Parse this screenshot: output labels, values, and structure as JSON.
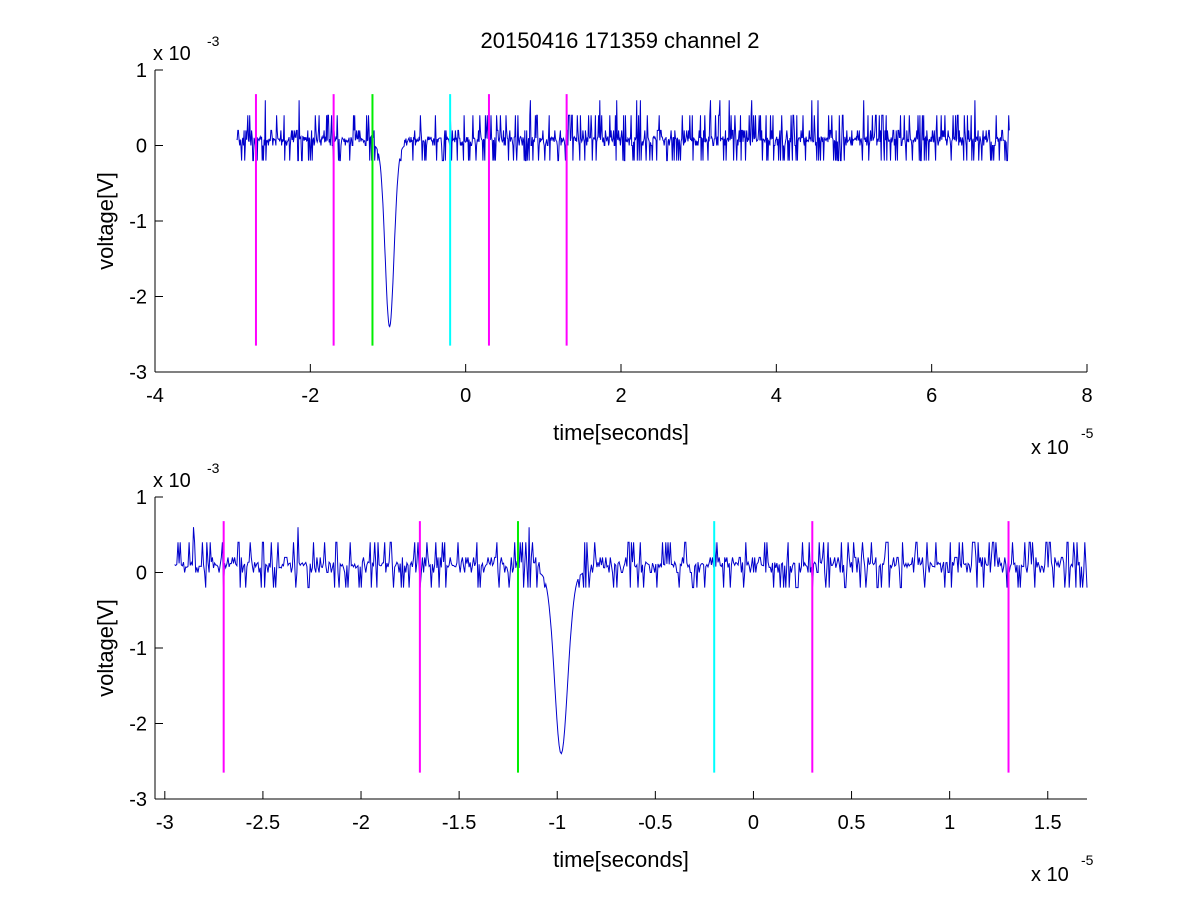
{
  "figure_title": "20150416 171359 channel 2",
  "colors": {
    "signal": "#0000cc",
    "marker_magenta": "#ff00ff",
    "marker_green": "#00ee00",
    "marker_cyan": "#00ffff",
    "axis": "#000000"
  },
  "chart_data": [
    {
      "type": "line",
      "title": "20150416 171359 channel 2",
      "xlabel": "time[seconds]",
      "ylabel": "voltage[V]",
      "x_multiplier": "x 10",
      "x_exponent": "-5",
      "y_multiplier": "x 10",
      "y_exponent": "-3",
      "xlim": [
        -4,
        8
      ],
      "ylim": [
        -3,
        1
      ],
      "x_unit_scale": 1e-05,
      "y_unit_scale": 0.001,
      "xticks": [
        -4,
        -2,
        0,
        2,
        4,
        6,
        8
      ],
      "xtick_labels": [
        "-4",
        "-2",
        "0",
        "2",
        "4",
        "6",
        "8"
      ],
      "yticks": [
        -3,
        -2,
        -1,
        0,
        1
      ],
      "ytick_labels": [
        "-3",
        "-2",
        "-1",
        "0",
        "1"
      ],
      "grid": false,
      "series": [
        {
          "color": "#0000cc",
          "x_start": -2.95,
          "x_end": 7.0,
          "baseline": 0.08,
          "noise_amplitude": 0.2,
          "spike": {
            "x": -0.98,
            "min": -2.4,
            "width": 0.12
          },
          "note_values": "approx trace: noisy around ~0.1e-3 V with a single negative spike near -1e-5 s"
        }
      ],
      "markers": [
        {
          "x": -2.7,
          "y_top": 0.68,
          "y_bottom": -2.65,
          "color": "#ff00ff"
        },
        {
          "x": -1.7,
          "y_top": 0.68,
          "y_bottom": -2.65,
          "color": "#ff00ff"
        },
        {
          "x": -1.2,
          "y_top": 0.68,
          "y_bottom": -2.65,
          "color": "#00ee00"
        },
        {
          "x": -0.2,
          "y_top": 0.68,
          "y_bottom": -2.65,
          "color": "#00ffff"
        },
        {
          "x": 0.3,
          "y_top": 0.68,
          "y_bottom": -2.65,
          "color": "#ff00ff"
        },
        {
          "x": 1.3,
          "y_top": 0.68,
          "y_bottom": -2.65,
          "color": "#ff00ff"
        }
      ]
    },
    {
      "type": "line",
      "title": "",
      "xlabel": "time[seconds]",
      "ylabel": "voltage[V]",
      "x_multiplier": "x 10",
      "x_exponent": "-5",
      "y_multiplier": "x 10",
      "y_exponent": "-3",
      "xlim": [
        -3.05,
        1.7
      ],
      "ylim": [
        -3,
        1
      ],
      "x_unit_scale": 1e-05,
      "y_unit_scale": 0.001,
      "xticks": [
        -3,
        -2.5,
        -2,
        -1.5,
        -1,
        -0.5,
        0,
        0.5,
        1,
        1.5
      ],
      "xtick_labels": [
        "-3",
        "-2.5",
        "-2",
        "-1.5",
        "-1",
        "-0.5",
        "0",
        "0.5",
        "1",
        "1.5"
      ],
      "yticks": [
        -3,
        -2,
        -1,
        0,
        1
      ],
      "ytick_labels": [
        "-3",
        "-2",
        "-1",
        "0",
        "1"
      ],
      "grid": false,
      "series": [
        {
          "color": "#0000cc",
          "x_start": -2.95,
          "x_end": 1.7,
          "baseline": 0.1,
          "noise_amplitude": 0.18,
          "spike": {
            "x": -0.98,
            "min": -2.4,
            "width": 0.07
          }
        }
      ],
      "markers": [
        {
          "x": -2.7,
          "y_top": 0.68,
          "y_bottom": -2.65,
          "color": "#ff00ff"
        },
        {
          "x": -1.7,
          "y_top": 0.68,
          "y_bottom": -2.65,
          "color": "#ff00ff"
        },
        {
          "x": -1.2,
          "y_top": 0.68,
          "y_bottom": -2.65,
          "color": "#00ee00"
        },
        {
          "x": -0.2,
          "y_top": 0.68,
          "y_bottom": -2.65,
          "color": "#00ffff"
        },
        {
          "x": 0.3,
          "y_top": 0.68,
          "y_bottom": -2.65,
          "color": "#ff00ff"
        },
        {
          "x": 1.3,
          "y_top": 0.68,
          "y_bottom": -2.65,
          "color": "#ff00ff"
        }
      ]
    }
  ]
}
